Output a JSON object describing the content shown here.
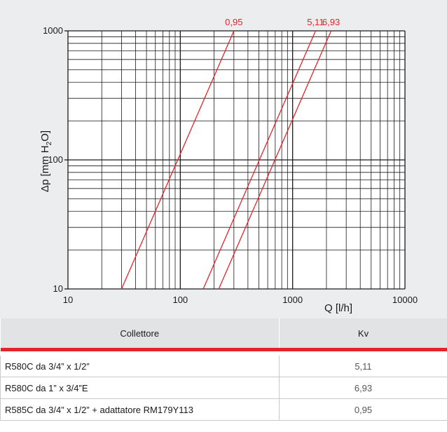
{
  "chart_data": {
    "type": "line",
    "xscale": "log",
    "yscale": "log",
    "xlim": [
      10,
      10000
    ],
    "ylim": [
      10,
      1000
    ],
    "xticks": [
      "10",
      "100",
      "1000",
      "10000"
    ],
    "yticks": [
      "10",
      "100",
      "1000"
    ],
    "xlabel": "Q [l/h]",
    "ylabel_prefix": "Δp [mm H",
    "ylabel_sub": "2",
    "ylabel_suffix": "O]",
    "grid": true,
    "series": [
      {
        "name": "0,95",
        "x": [
          30,
          300
        ],
        "y": [
          10,
          1000
        ],
        "color": "#e3242b"
      },
      {
        "name": "5,11",
        "x": [
          160,
          1600
        ],
        "y": [
          10,
          1000
        ],
        "color": "#e3242b"
      },
      {
        "name": "6,93",
        "x": [
          220,
          2200
        ],
        "y": [
          10,
          1000
        ],
        "color": "#e3242b"
      }
    ]
  },
  "table": {
    "headers": [
      "Collettore",
      "Kv"
    ],
    "rows": [
      {
        "name": "R580C da 3/4” x 1/2”",
        "kv": "5,11"
      },
      {
        "name": "R580C da 1” x 3/4”E",
        "kv": "6,93"
      },
      {
        "name": "R585C da 3/4” x 1/2” + adattatore RM179Y113",
        "kv": "0,95"
      }
    ]
  }
}
